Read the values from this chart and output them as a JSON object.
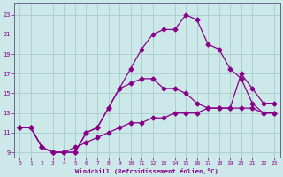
{
  "xlabel": "Windchill (Refroidissement éolien,°C)",
  "bg_color": "#cce8e8",
  "line_color": "#880088",
  "grid_color": "#aacccc",
  "axis_color": "#666688",
  "xlim": [
    -0.5,
    23.5
  ],
  "ylim": [
    8.5,
    24.2
  ],
  "xticks": [
    0,
    1,
    2,
    3,
    4,
    5,
    6,
    7,
    8,
    9,
    10,
    11,
    12,
    13,
    14,
    15,
    16,
    17,
    18,
    19,
    20,
    21,
    22,
    23
  ],
  "yticks": [
    9,
    11,
    13,
    15,
    17,
    19,
    21,
    23
  ],
  "line1_x": [
    0,
    1,
    2,
    3,
    4,
    5,
    6,
    7,
    8,
    9,
    10,
    11,
    12,
    13,
    14,
    15,
    16,
    17,
    18,
    19,
    20,
    21,
    22,
    23
  ],
  "line1_y": [
    11.5,
    11.5,
    9.5,
    9.0,
    9.0,
    9.0,
    11.0,
    11.5,
    13.5,
    15.5,
    17.5,
    19.5,
    21.0,
    21.5,
    21.5,
    23.0,
    22.5,
    20.0,
    19.5,
    17.5,
    16.5,
    14.0,
    13.0,
    13.0
  ],
  "line2_x": [
    0,
    1,
    2,
    3,
    4,
    5,
    6,
    7,
    8,
    9,
    10,
    11,
    12,
    13,
    14,
    15,
    16,
    17,
    18,
    19,
    20,
    21,
    22,
    23
  ],
  "line2_y": [
    11.5,
    11.5,
    9.5,
    9.0,
    9.0,
    9.0,
    11.0,
    11.5,
    13.5,
    15.5,
    16.0,
    16.5,
    16.5,
    15.5,
    15.5,
    15.0,
    14.0,
    13.5,
    13.5,
    13.5,
    17.0,
    15.5,
    14.0,
    14.0
  ],
  "line3_x": [
    0,
    1,
    2,
    3,
    4,
    5,
    6,
    7,
    8,
    9,
    10,
    11,
    12,
    13,
    14,
    15,
    16,
    17,
    18,
    19,
    20,
    21,
    22,
    23
  ],
  "line3_y": [
    11.5,
    11.5,
    9.5,
    9.0,
    9.0,
    9.5,
    10.0,
    10.5,
    11.0,
    11.5,
    12.0,
    12.0,
    12.5,
    12.5,
    13.0,
    13.0,
    13.0,
    13.5,
    13.5,
    13.5,
    13.5,
    13.5,
    13.0,
    13.0
  ],
  "markersize": 2.5,
  "linewidth": 0.9
}
